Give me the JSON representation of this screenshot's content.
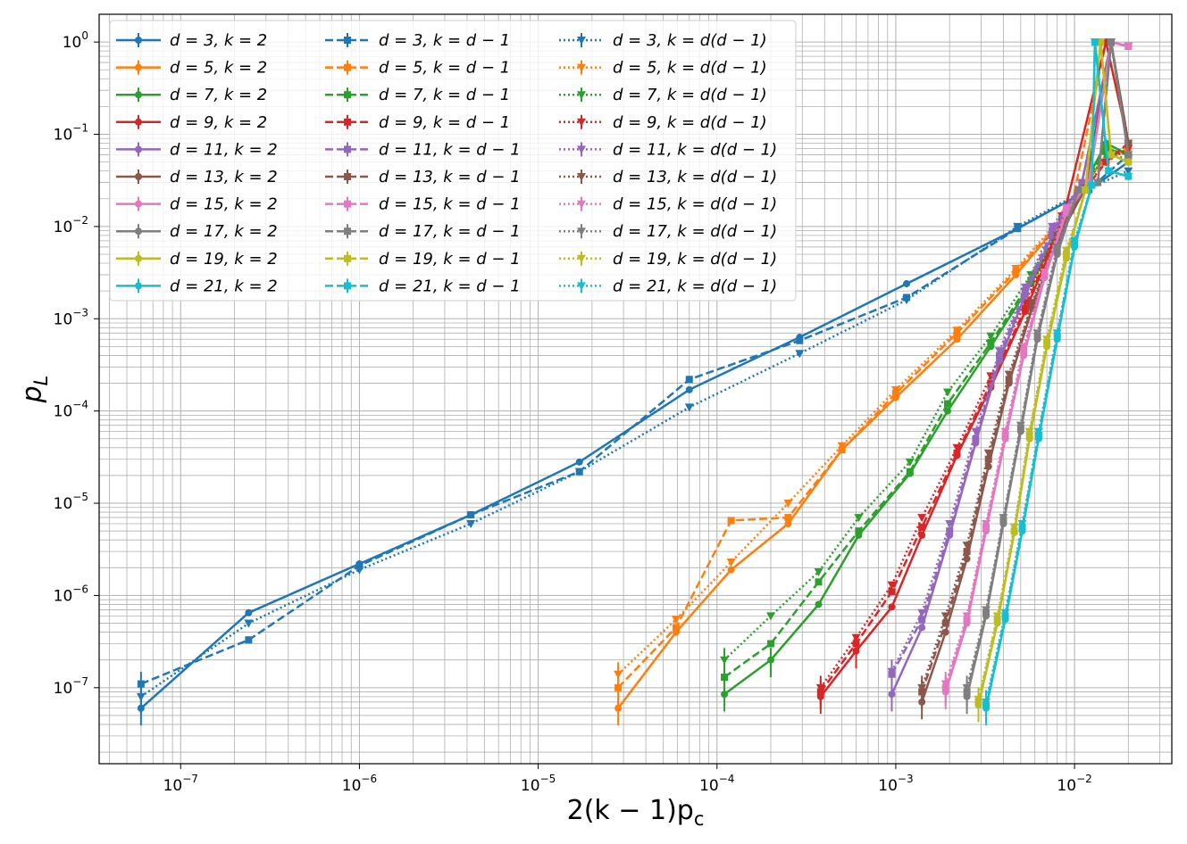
{
  "chart_data": {
    "type": "line",
    "xlabel": "2(k − 1)p",
    "xlabel_sub": "c",
    "ylabel": "p",
    "ylabel_sub": "L",
    "x_scale": "log",
    "y_scale": "log",
    "xlim": [
      3.5e-08,
      0.035
    ],
    "ylim": [
      1.5e-08,
      2.0
    ],
    "grid": true,
    "legend_position": "top-left",
    "x_ticks": [
      {
        "value": 1e-07,
        "base": "10",
        "exp": "−7"
      },
      {
        "value": 1e-06,
        "base": "10",
        "exp": "−6"
      },
      {
        "value": 1e-05,
        "base": "10",
        "exp": "−5"
      },
      {
        "value": 0.0001,
        "base": "10",
        "exp": "−4"
      },
      {
        "value": 0.001,
        "base": "10",
        "exp": "−3"
      },
      {
        "value": 0.01,
        "base": "10",
        "exp": "−2"
      }
    ],
    "y_ticks": [
      {
        "value": 1e-07,
        "base": "10",
        "exp": "−7"
      },
      {
        "value": 1e-06,
        "base": "10",
        "exp": "−6"
      },
      {
        "value": 1e-05,
        "base": "10",
        "exp": "−5"
      },
      {
        "value": 0.0001,
        "base": "10",
        "exp": "−4"
      },
      {
        "value": 0.001,
        "base": "10",
        "exp": "−3"
      },
      {
        "value": 0.01,
        "base": "10",
        "exp": "−2"
      },
      {
        "value": 0.1,
        "base": "10",
        "exp": "−1"
      },
      {
        "value": 1,
        "base": "10",
        "exp": "0"
      }
    ],
    "colors": {
      "3": "#1f77b4",
      "5": "#ff7f0e",
      "7": "#2ca02c",
      "9": "#d62728",
      "11": "#9467bd",
      "13": "#8c564b",
      "15": "#e377c2",
      "17": "#7f7f7f",
      "19": "#bcbd22",
      "21": "#17becf"
    },
    "style_groups": [
      {
        "key": "k=2",
        "dash": "solid",
        "marker": "circle",
        "label_suffix": "k = 2"
      },
      {
        "key": "k=d-1",
        "dash": "dashed",
        "marker": "square",
        "label_suffix": "k = d − 1"
      },
      {
        "key": "k=d(d-1)",
        "dash": "dotted",
        "marker": "triangle-down",
        "label_suffix": "k = d(d − 1)"
      }
    ],
    "legend_entries": [
      "d = 3, k = 2",
      "d = 5, k = 2",
      "d = 7, k = 2",
      "d = 9, k = 2",
      "d = 11, k = 2",
      "d = 13, k = 2",
      "d = 15, k = 2",
      "d = 17, k = 2",
      "d = 19, k = 2",
      "d = 21, k = 2",
      "d = 3, k = d − 1",
      "d = 5, k = d − 1",
      "d = 7, k = d − 1",
      "d = 9, k = d − 1",
      "d = 11, k = d − 1",
      "d = 13, k = d − 1",
      "d = 15, k = d − 1",
      "d = 17, k = d − 1",
      "d = 19, k = d − 1",
      "d = 21, k = d − 1",
      "d = 3, k = d(d − 1)",
      "d = 5, k = d(d − 1)",
      "d = 7, k = d(d − 1)",
      "d = 9, k = d(d − 1)",
      "d = 11, k = d(d − 1)",
      "d = 13, k = d(d − 1)",
      "d = 15, k = d(d − 1)",
      "d = 17, k = d(d − 1)",
      "d = 19, k = d(d − 1)",
      "d = 21, k = d(d − 1)"
    ],
    "series": [
      {
        "d": 3,
        "group": "k=2",
        "x": [
          6e-08,
          2.4e-07,
          1e-06,
          4.2e-06,
          1.7e-05,
          7e-05,
          0.00029,
          0.00115,
          0.0048,
          0.012,
          0.02
        ],
        "y": [
          6e-08,
          6.5e-07,
          2.2e-06,
          7.5e-06,
          2.8e-05,
          0.00017,
          0.00063,
          0.0024,
          0.0095,
          0.025,
          0.05
        ]
      },
      {
        "d": 3,
        "group": "k=d-1",
        "x": [
          6e-08,
          2.4e-07,
          1e-06,
          4.2e-06,
          1.7e-05,
          7e-05,
          0.00029,
          0.00115,
          0.0048,
          0.012,
          0.02
        ],
        "y": [
          1.1e-07,
          3.3e-07,
          2.1e-06,
          7.5e-06,
          2.2e-05,
          0.00022,
          0.00058,
          0.0017,
          0.0095,
          0.025,
          0.06
        ]
      },
      {
        "d": 3,
        "group": "k=d(d-1)",
        "x": [
          6e-08,
          2.4e-07,
          1e-06,
          4.2e-06,
          1.7e-05,
          7e-05,
          0.00029,
          0.00115,
          0.0048,
          0.012,
          0.02
        ],
        "y": [
          8e-08,
          5e-07,
          1.9e-06,
          6e-06,
          2.2e-05,
          0.00011,
          0.00042,
          0.0016,
          0.01,
          0.026,
          0.04
        ]
      },
      {
        "d": 5,
        "group": "k=2",
        "x": [
          2.8e-05,
          5.9e-05,
          0.00012,
          0.00025,
          0.0005,
          0.001,
          0.0022,
          0.0047,
          0.0095,
          0.014,
          0.02
        ],
        "y": [
          6e-08,
          4e-07,
          1.9e-06,
          6e-06,
          3.8e-05,
          0.00014,
          0.0006,
          0.003,
          0.015,
          0.05,
          0.07
        ]
      },
      {
        "d": 5,
        "group": "k=d-1",
        "x": [
          2.8e-05,
          5.9e-05,
          0.00012,
          0.00025,
          0.0005,
          0.001,
          0.0022,
          0.0047,
          0.0095,
          0.015,
          0.02
        ],
        "y": [
          1e-07,
          4.5e-07,
          6.5e-06,
          7e-06,
          3.8e-05,
          0.000155,
          0.0007,
          0.0033,
          0.015,
          1.0,
          0.08
        ]
      },
      {
        "d": 5,
        "group": "k=d(d-1)",
        "x": [
          2.8e-05,
          5.9e-05,
          0.00012,
          0.00025,
          0.0005,
          0.001,
          0.0022,
          0.0047,
          0.0095,
          0.015,
          0.02
        ],
        "y": [
          1.4e-07,
          5.5e-07,
          2.3e-06,
          1e-05,
          4.2e-05,
          0.00017,
          0.00075,
          0.0035,
          0.016,
          0.06,
          0.07
        ]
      },
      {
        "d": 7,
        "group": "k=2",
        "x": [
          0.00011,
          0.0002,
          0.00037,
          0.00062,
          0.0012,
          0.00195,
          0.0034,
          0.0057,
          0.009,
          0.015,
          0.02
        ],
        "y": [
          8.5e-08,
          2e-07,
          8e-07,
          4.5e-06,
          2.1e-05,
          0.0001,
          0.0005,
          0.0024,
          0.012,
          0.08,
          0.06
        ]
      },
      {
        "d": 7,
        "group": "k=d-1",
        "x": [
          0.00011,
          0.0002,
          0.00037,
          0.00062,
          0.0012,
          0.00195,
          0.0034,
          0.0057,
          0.009,
          0.015,
          0.02
        ],
        "y": [
          1.3e-07,
          3e-07,
          1.4e-06,
          5e-06,
          2.2e-05,
          0.00012,
          0.00055,
          0.0026,
          0.013,
          0.07,
          0.06
        ]
      },
      {
        "d": 7,
        "group": "k=d(d-1)",
        "x": [
          0.00011,
          0.0002,
          0.00037,
          0.00062,
          0.0012,
          0.00195,
          0.0034,
          0.0057,
          0.009,
          0.015,
          0.02
        ],
        "y": [
          2e-07,
          6e-07,
          1.8e-06,
          7e-06,
          2.8e-05,
          0.00016,
          0.00065,
          0.003,
          0.014,
          0.06,
          0.055
        ]
      },
      {
        "d": 9,
        "group": "k=2",
        "x": [
          0.00038,
          0.0006,
          0.00095,
          0.0014,
          0.0022,
          0.0034,
          0.0053,
          0.0085,
          0.015,
          0.02
        ],
        "y": [
          8e-08,
          2.5e-07,
          7.5e-07,
          4.5e-06,
          3.3e-05,
          0.00018,
          0.0012,
          0.011,
          1.0,
          0.08
        ]
      },
      {
        "d": 9,
        "group": "k=d-1",
        "x": [
          0.00038,
          0.0006,
          0.00095,
          0.0014,
          0.0022,
          0.0034,
          0.0053,
          0.0085,
          0.015,
          0.02
        ],
        "y": [
          9e-08,
          3e-07,
          1.1e-06,
          5.5e-06,
          3.5e-05,
          0.0002,
          0.0013,
          0.012,
          0.05,
          0.08
        ]
      },
      {
        "d": 9,
        "group": "k=d(d-1)",
        "x": [
          0.00038,
          0.0006,
          0.00095,
          0.0014,
          0.0022,
          0.0034,
          0.0053,
          0.0085,
          0.015,
          0.02
        ],
        "y": [
          1e-07,
          3.5e-07,
          1.3e-06,
          7e-06,
          4e-05,
          0.00024,
          0.0015,
          0.013,
          0.05,
          0.07
        ]
      },
      {
        "d": 11,
        "group": "k=2",
        "x": [
          0.00095,
          0.0014,
          0.002,
          0.0028,
          0.0038,
          0.0053,
          0.0075,
          0.011,
          0.016,
          0.02
        ],
        "y": [
          8.5e-08,
          4.5e-07,
          4.5e-06,
          4.5e-05,
          0.00035,
          0.0018,
          0.008,
          0.03,
          1.0,
          0.9
        ]
      },
      {
        "d": 11,
        "group": "k=d-1",
        "x": [
          0.00095,
          0.0014,
          0.002,
          0.0028,
          0.0038,
          0.0053,
          0.0075,
          0.011,
          0.016,
          0.02
        ],
        "y": [
          1.4e-07,
          5.5e-07,
          5e-06,
          5e-05,
          0.0004,
          0.002,
          0.009,
          0.03,
          1.0,
          0.9
        ]
      },
      {
        "d": 11,
        "group": "k=d(d-1)",
        "x": [
          0.00095,
          0.0014,
          0.002,
          0.0028,
          0.0038,
          0.0053,
          0.0075,
          0.011,
          0.016,
          0.02
        ],
        "y": [
          1.5e-07,
          6.5e-07,
          6e-06,
          6e-05,
          0.00045,
          0.0022,
          0.01,
          0.03,
          1.0,
          0.9
        ]
      },
      {
        "d": 13,
        "group": "k=2",
        "x": [
          0.0014,
          0.0019,
          0.0025,
          0.0033,
          0.0043,
          0.0058,
          0.008,
          0.0115,
          0.016,
          0.02
        ],
        "y": [
          7e-08,
          4e-07,
          2.5e-06,
          2.5e-05,
          0.0002,
          0.0013,
          0.007,
          0.026,
          1.0,
          0.08
        ]
      },
      {
        "d": 13,
        "group": "k=d-1",
        "x": [
          0.0014,
          0.0019,
          0.0025,
          0.0033,
          0.0043,
          0.0058,
          0.008,
          0.0115,
          0.016,
          0.02
        ],
        "y": [
          9e-08,
          5e-07,
          3e-06,
          3e-05,
          0.00022,
          0.0014,
          0.0075,
          0.026,
          1.0,
          0.08
        ]
      },
      {
        "d": 13,
        "group": "k=d(d-1)",
        "x": [
          0.0014,
          0.0019,
          0.0025,
          0.0033,
          0.0043,
          0.0058,
          0.008,
          0.0115,
          0.016,
          0.02
        ],
        "y": [
          1e-07,
          6e-07,
          3.5e-06,
          3.5e-05,
          0.00025,
          0.0015,
          0.008,
          0.026,
          1.0,
          0.08
        ]
      },
      {
        "d": 15,
        "group": "k=2",
        "x": [
          0.0019,
          0.0025,
          0.0032,
          0.0041,
          0.0052,
          0.0068,
          0.009,
          0.012,
          0.016,
          0.02
        ],
        "y": [
          9e-08,
          5e-07,
          5e-06,
          5e-05,
          0.0004,
          0.0028,
          0.014,
          0.03,
          1.0,
          0.9
        ]
      },
      {
        "d": 15,
        "group": "k=d-1",
        "x": [
          0.0019,
          0.0025,
          0.0032,
          0.0041,
          0.0052,
          0.0068,
          0.009,
          0.012,
          0.016,
          0.02
        ],
        "y": [
          1e-07,
          5.5e-07,
          5.5e-06,
          5.5e-05,
          0.00045,
          0.003,
          0.015,
          0.03,
          1.0,
          0.9
        ]
      },
      {
        "d": 15,
        "group": "k=d(d-1)",
        "x": [
          0.0019,
          0.0025,
          0.0032,
          0.0041,
          0.0052,
          0.0068,
          0.009,
          0.012,
          0.016,
          0.02
        ],
        "y": [
          1.1e-07,
          6e-07,
          6e-06,
          6e-05,
          0.0005,
          0.0032,
          0.016,
          0.03,
          1.0,
          0.9
        ]
      },
      {
        "d": 17,
        "group": "k=2",
        "x": [
          0.0025,
          0.0032,
          0.004,
          0.005,
          0.0062,
          0.008,
          0.0105,
          0.0135,
          0.016,
          0.02
        ],
        "y": [
          8e-08,
          6e-07,
          6e-06,
          6e-05,
          0.0006,
          0.005,
          0.025,
          0.03,
          1.0,
          0.06
        ]
      },
      {
        "d": 17,
        "group": "k=d-1",
        "x": [
          0.0025,
          0.0032,
          0.004,
          0.005,
          0.0062,
          0.008,
          0.0105,
          0.0135,
          0.016,
          0.02
        ],
        "y": [
          9e-08,
          6.5e-07,
          6.5e-06,
          6.5e-05,
          0.00065,
          0.0055,
          0.025,
          0.03,
          1.0,
          0.06
        ]
      },
      {
        "d": 17,
        "group": "k=d(d-1)",
        "x": [
          0.0025,
          0.0032,
          0.004,
          0.005,
          0.0062,
          0.008,
          0.0105,
          0.0135,
          0.016,
          0.02
        ],
        "y": [
          1e-07,
          7e-07,
          7e-06,
          7e-05,
          0.0007,
          0.006,
          0.025,
          0.03,
          1.0,
          0.06
        ]
      },
      {
        "d": 19,
        "group": "k=2",
        "x": [
          0.0029,
          0.0037,
          0.0046,
          0.0056,
          0.007,
          0.009,
          0.0115,
          0.014,
          0.016,
          0.02
        ],
        "y": [
          6.5e-08,
          5e-07,
          4.8e-06,
          5e-05,
          0.0005,
          0.0045,
          0.025,
          1.0,
          0.06,
          0.05
        ]
      },
      {
        "d": 19,
        "group": "k=d-1",
        "x": [
          0.0029,
          0.0037,
          0.0046,
          0.0056,
          0.007,
          0.009,
          0.0115,
          0.014,
          0.016,
          0.02
        ],
        "y": [
          7e-08,
          5.5e-07,
          5e-06,
          5.5e-05,
          0.00055,
          0.005,
          0.025,
          1.0,
          0.06,
          0.05
        ]
      },
      {
        "d": 19,
        "group": "k=d(d-1)",
        "x": [
          0.0029,
          0.0037,
          0.0046,
          0.0056,
          0.007,
          0.009,
          0.0115,
          0.014,
          0.016,
          0.02
        ],
        "y": [
          7.5e-08,
          6e-07,
          5.5e-06,
          6e-05,
          0.0006,
          0.0055,
          0.025,
          1.0,
          0.06,
          0.05
        ]
      },
      {
        "d": 21,
        "group": "k=2",
        "x": [
          0.0032,
          0.0041,
          0.0051,
          0.0063,
          0.008,
          0.01,
          0.0125,
          0.013,
          0.0155,
          0.02
        ],
        "y": [
          6e-08,
          5.5e-07,
          5e-06,
          5e-05,
          0.0006,
          0.006,
          0.028,
          1.0,
          0.04,
          0.035
        ]
      },
      {
        "d": 21,
        "group": "k=d-1",
        "x": [
          0.0032,
          0.0041,
          0.0051,
          0.0063,
          0.008,
          0.01,
          0.0125,
          0.013,
          0.0155,
          0.02
        ],
        "y": [
          6.5e-08,
          6e-07,
          5.5e-06,
          5.5e-05,
          0.00065,
          0.0065,
          0.028,
          1.0,
          0.04,
          0.035
        ]
      },
      {
        "d": 21,
        "group": "k=d(d-1)",
        "x": [
          0.0032,
          0.0041,
          0.0051,
          0.0063,
          0.008,
          0.01,
          0.0125,
          0.013,
          0.0155,
          0.02
        ],
        "y": [
          7e-08,
          6.5e-07,
          6e-06,
          6e-05,
          0.0007,
          0.007,
          0.028,
          1.0,
          0.04,
          0.035
        ]
      }
    ]
  }
}
